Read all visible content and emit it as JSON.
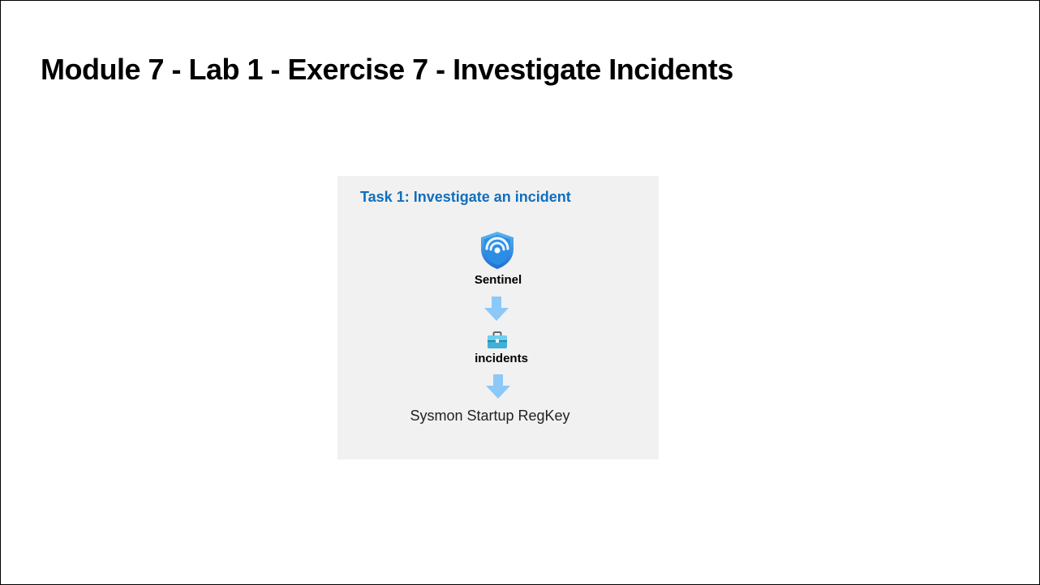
{
  "slide": {
    "title": "Module 7 - Lab 1 - Exercise 7 - Investigate Incidents"
  },
  "task": {
    "title": "Task 1: Investigate an incident",
    "steps": [
      {
        "label": "Sentinel",
        "icon": "sentinel-shield-icon"
      },
      {
        "label": "incidents",
        "icon": "briefcase-icon"
      },
      {
        "label": "Sysmon Startup RegKey"
      }
    ],
    "arrow_icon": "down-arrow-icon"
  },
  "colors": {
    "panel_background": "#f1f1f1",
    "task_title": "#106ebe",
    "arrow": "#8cc8f8",
    "shield_dark": "#1f6fd0",
    "shield_light": "#5ab4f0"
  }
}
